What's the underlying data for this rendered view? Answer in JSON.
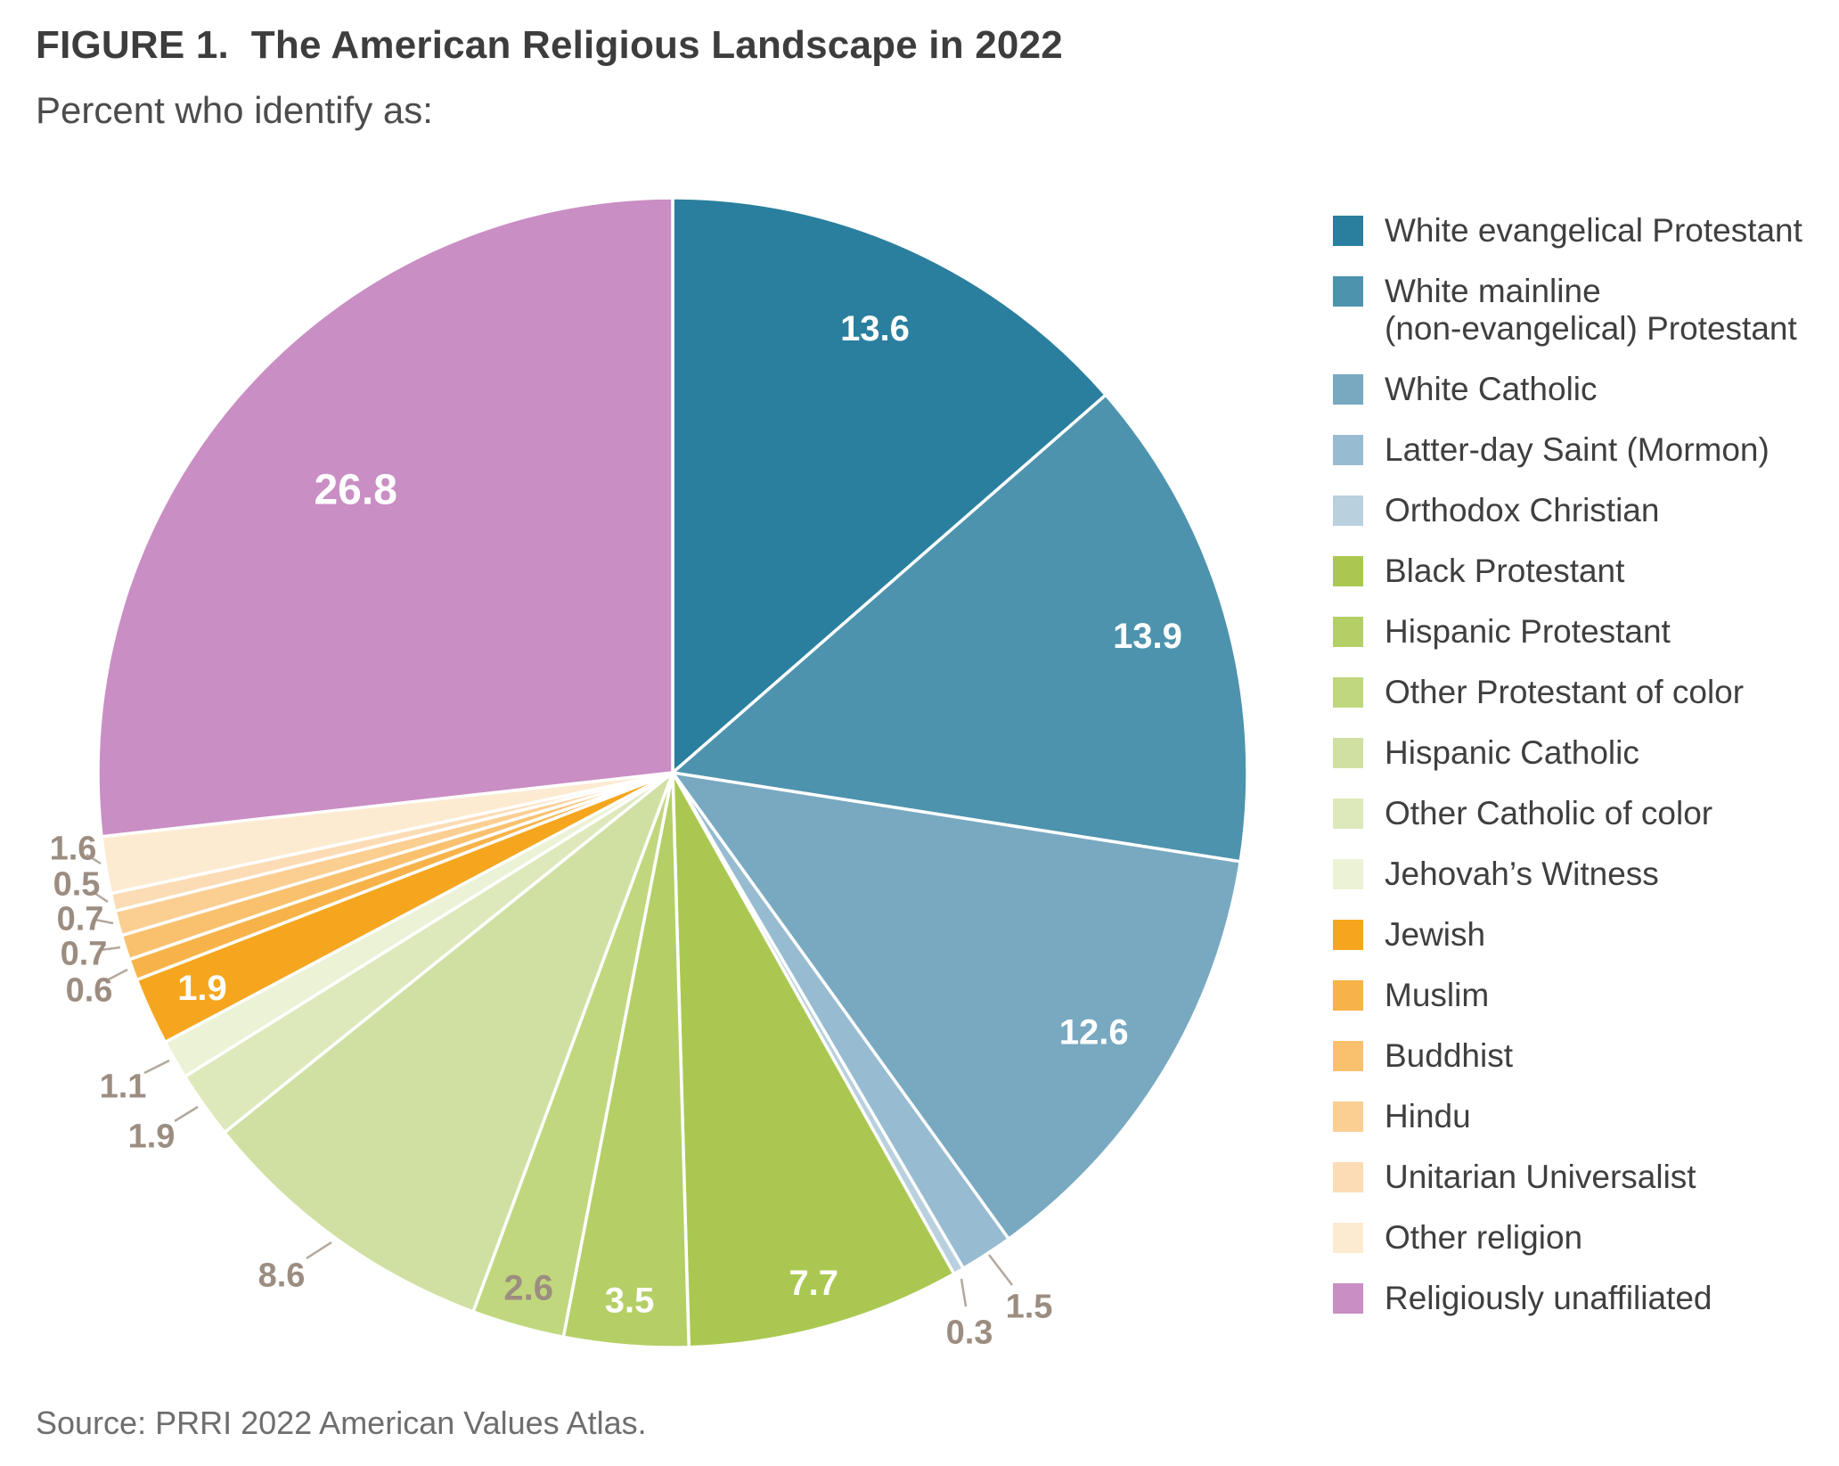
{
  "header": {
    "title": "FIGURE 1.  The American Religious Landscape in 2022",
    "subtitle": "Percent who identify as:"
  },
  "source": "Source: PRRI 2022 American Values Atlas.",
  "chart_data": {
    "type": "pie",
    "title": "The American Religious Landscape in 2022",
    "unit": "percent",
    "start_angle_deg": 0,
    "direction": "clockwise",
    "legend_position": "right",
    "inside_label_color": "#ffffff",
    "outside_label_color": "#9c8d81",
    "leader_line_color": "#b3a89d",
    "slice_separator_color": "#ffffff",
    "slices": [
      {
        "label": "White evangelical Protestant",
        "value": 13.6,
        "color": "#2a7f9e"
      },
      {
        "label": "White mainline (non-evangelical) Protestant",
        "legend_lines": [
          "White mainline",
          "(non-evangelical) Protestant"
        ],
        "value": 13.9,
        "color": "#4d93ae"
      },
      {
        "label": "White Catholic",
        "value": 12.6,
        "color": "#78a9c1"
      },
      {
        "label": "Latter-day Saint (Mormon)",
        "value": 1.5,
        "color": "#97bcd1"
      },
      {
        "label": "Orthodox Christian",
        "value": 0.3,
        "color": "#b9d0de"
      },
      {
        "label": "Black Protestant",
        "value": 7.7,
        "color": "#aac851"
      },
      {
        "label": "Hispanic Protestant",
        "value": 3.5,
        "color": "#b4cf66"
      },
      {
        "label": "Other Protestant of color",
        "value": 2.6,
        "color": "#c0d77e"
      },
      {
        "label": "Hispanic Catholic",
        "value": 8.6,
        "color": "#cfe0a2"
      },
      {
        "label": "Other Catholic of color",
        "value": 1.9,
        "color": "#dde9bb"
      },
      {
        "label": "Jehovah’s Witness",
        "value": 1.1,
        "color": "#ebf2d6"
      },
      {
        "label": "Jewish",
        "value": 1.9,
        "color": "#f5a61e"
      },
      {
        "label": "Muslim",
        "value": 0.6,
        "color": "#f7b349"
      },
      {
        "label": "Buddhist",
        "value": 0.7,
        "color": "#f9c16e"
      },
      {
        "label": "Hindu",
        "value": 0.7,
        "color": "#fbce92"
      },
      {
        "label": "Unitarian Universalist",
        "value": 0.5,
        "color": "#fcdcb5"
      },
      {
        "label": "Other religion",
        "value": 1.6,
        "color": "#fdebd1"
      },
      {
        "label": "Religiously unaffiliated",
        "value": 26.8,
        "color": "#c98ec4"
      }
    ]
  }
}
